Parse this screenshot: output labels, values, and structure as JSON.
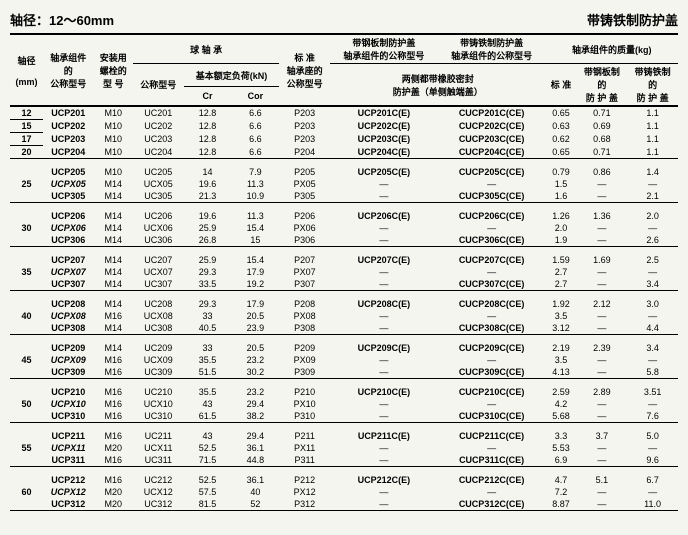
{
  "title_left": "轴径：12～60mm",
  "title_right": "带铸铁制防护盖",
  "headers": {
    "shaft_diam": "轴径",
    "shaft_diam_unit": "(mm)",
    "unit_desig": "轴承组件\n的\n公称型号",
    "mount_bolt": "安装用\n螺栓的\n型 号",
    "ball_bearing": "球 轴 承",
    "bearing_desig": "公称型号",
    "basic_load": "基本额定负荷(kN)",
    "cr": "Cr",
    "cor": "Cor",
    "std_housing": "标  准\n轴承座的\n公称型号",
    "steel_cover": "带钢板制防护盖\n轴承组件的公称型号",
    "cast_cover": "带铸铁制防护盖\n轴承组件的公称型号",
    "rubber_seal": "两侧都带橡胶密封\n防护盖（单侧触端盖）",
    "mass": "轴承组件的质量(kg)",
    "mass_std": "标  准",
    "mass_steel": "带钢板制\n的\n防 护 盖",
    "mass_cast": "带铸铁制\n的\n防 护 盖"
  },
  "rows": [
    {
      "d": "12",
      "u": "UCP201",
      "b": "M10",
      "br": "UC201",
      "cr": "12.8",
      "cor": "6.6",
      "h": "P203",
      "s": "UCP201C(E)",
      "c": "CUCP201C(CE)",
      "m1": "0.65",
      "m2": "0.71",
      "m3": "1.1",
      "sty": "bold"
    },
    {
      "d": "15",
      "u": "UCP202",
      "b": "M10",
      "br": "UC202",
      "cr": "12.8",
      "cor": "6.6",
      "h": "P203",
      "s": "UCP202C(E)",
      "c": "CUCP202C(CE)",
      "m1": "0.63",
      "m2": "0.69",
      "m3": "1.1",
      "sty": "bold"
    },
    {
      "d": "17",
      "u": "UCP203",
      "b": "M10",
      "br": "UC203",
      "cr": "12.8",
      "cor": "6.6",
      "h": "P203",
      "s": "UCP203C(E)",
      "c": "CUCP203C(CE)",
      "m1": "0.62",
      "m2": "0.68",
      "m3": "1.1",
      "sty": "bold"
    },
    {
      "d": "20",
      "u": "UCP204",
      "b": "M10",
      "br": "UC204",
      "cr": "12.8",
      "cor": "6.6",
      "h": "P204",
      "s": "UCP204C(E)",
      "c": "CUCP204C(CE)",
      "m1": "0.65",
      "m2": "0.71",
      "m3": "1.1",
      "sty": "bold",
      "last": true
    },
    {
      "d": "25",
      "u": "UCP205",
      "b": "M10",
      "br": "UC205",
      "cr": "14",
      "cor": "7.9",
      "h": "P205",
      "s": "UCP205C(E)",
      "c": "CUCP205C(CE)",
      "m1": "0.79",
      "m2": "0.86",
      "m3": "1.4",
      "sty": "bold",
      "gap": true,
      "span": 3
    },
    {
      "d": "",
      "u": "UCPX05",
      "b": "M14",
      "br": "UCX05",
      "cr": "19.6",
      "cor": "11.3",
      "h": "PX05",
      "s": "—",
      "c": "—",
      "m1": "1.5",
      "m2": "—",
      "m3": "—",
      "sty": "italic"
    },
    {
      "d": "",
      "u": "UCP305",
      "b": "M14",
      "br": "UC305",
      "cr": "21.3",
      "cor": "10.9",
      "h": "P305",
      "s": "—",
      "c": "CUCP305C(CE)",
      "m1": "1.6",
      "m2": "—",
      "m3": "2.1",
      "sty": "bold",
      "last": true
    },
    {
      "d": "30",
      "u": "UCP206",
      "b": "M14",
      "br": "UC206",
      "cr": "19.6",
      "cor": "11.3",
      "h": "P206",
      "s": "UCP206C(E)",
      "c": "CUCP206C(CE)",
      "m1": "1.26",
      "m2": "1.36",
      "m3": "2.0",
      "sty": "bold",
      "gap": true,
      "span": 3
    },
    {
      "d": "",
      "u": "UCPX06",
      "b": "M14",
      "br": "UCX06",
      "cr": "25.9",
      "cor": "15.4",
      "h": "PX06",
      "s": "—",
      "c": "—",
      "m1": "2.0",
      "m2": "—",
      "m3": "—",
      "sty": "italic"
    },
    {
      "d": "",
      "u": "UCP306",
      "b": "M14",
      "br": "UC306",
      "cr": "26.8",
      "cor": "15",
      "h": "P306",
      "s": "—",
      "c": "CUCP306C(CE)",
      "m1": "1.9",
      "m2": "—",
      "m3": "2.6",
      "sty": "bold",
      "last": true
    },
    {
      "d": "35",
      "u": "UCP207",
      "b": "M14",
      "br": "UC207",
      "cr": "25.9",
      "cor": "15.4",
      "h": "P207",
      "s": "UCP207C(E)",
      "c": "CUCP207C(CE)",
      "m1": "1.59",
      "m2": "1.69",
      "m3": "2.5",
      "sty": "bold",
      "gap": true,
      "span": 3
    },
    {
      "d": "",
      "u": "UCPX07",
      "b": "M14",
      "br": "UCX07",
      "cr": "29.3",
      "cor": "17.9",
      "h": "PX07",
      "s": "—",
      "c": "—",
      "m1": "2.7",
      "m2": "—",
      "m3": "—",
      "sty": "italic"
    },
    {
      "d": "",
      "u": "UCP307",
      "b": "M14",
      "br": "UC307",
      "cr": "33.5",
      "cor": "19.2",
      "h": "P307",
      "s": "—",
      "c": "CUCP307C(CE)",
      "m1": "2.7",
      "m2": "—",
      "m3": "3.4",
      "sty": "bold",
      "last": true
    },
    {
      "d": "40",
      "u": "UCP208",
      "b": "M14",
      "br": "UC208",
      "cr": "29.3",
      "cor": "17.9",
      "h": "P208",
      "s": "UCP208C(E)",
      "c": "CUCP208C(CE)",
      "m1": "1.92",
      "m2": "2.12",
      "m3": "3.0",
      "sty": "bold",
      "gap": true,
      "span": 3
    },
    {
      "d": "",
      "u": "UCPX08",
      "b": "M16",
      "br": "UCX08",
      "cr": "33",
      "cor": "20.5",
      "h": "PX08",
      "s": "—",
      "c": "—",
      "m1": "3.5",
      "m2": "—",
      "m3": "—",
      "sty": "italic"
    },
    {
      "d": "",
      "u": "UCP308",
      "b": "M14",
      "br": "UC308",
      "cr": "40.5",
      "cor": "23.9",
      "h": "P308",
      "s": "—",
      "c": "CUCP308C(CE)",
      "m1": "3.12",
      "m2": "—",
      "m3": "4.4",
      "sty": "bold",
      "last": true
    },
    {
      "d": "45",
      "u": "UCP209",
      "b": "M14",
      "br": "UC209",
      "cr": "33",
      "cor": "20.5",
      "h": "P209",
      "s": "UCP209C(E)",
      "c": "CUCP209C(CE)",
      "m1": "2.19",
      "m2": "2.39",
      "m3": "3.4",
      "sty": "bold",
      "gap": true,
      "span": 3
    },
    {
      "d": "",
      "u": "UCPX09",
      "b": "M16",
      "br": "UCX09",
      "cr": "35.5",
      "cor": "23.2",
      "h": "PX09",
      "s": "—",
      "c": "—",
      "m1": "3.5",
      "m2": "—",
      "m3": "—",
      "sty": "italic"
    },
    {
      "d": "",
      "u": "UCP309",
      "b": "M16",
      "br": "UC309",
      "cr": "51.5",
      "cor": "30.2",
      "h": "P309",
      "s": "—",
      "c": "CUCP309C(CE)",
      "m1": "4.13",
      "m2": "—",
      "m3": "5.8",
      "sty": "bold",
      "last": true
    },
    {
      "d": "50",
      "u": "UCP210",
      "b": "M16",
      "br": "UC210",
      "cr": "35.5",
      "cor": "23.2",
      "h": "P210",
      "s": "UCP210C(E)",
      "c": "CUCP210C(CE)",
      "m1": "2.59",
      "m2": "2.89",
      "m3": "3.51",
      "sty": "bold",
      "gap": true,
      "span": 3
    },
    {
      "d": "",
      "u": "UCPX10",
      "b": "M16",
      "br": "UCX10",
      "cr": "43",
      "cor": "29.4",
      "h": "PX10",
      "s": "—",
      "c": "—",
      "m1": "4.2",
      "m2": "—",
      "m3": "—",
      "sty": "italic"
    },
    {
      "d": "",
      "u": "UCP310",
      "b": "M16",
      "br": "UC310",
      "cr": "61.5",
      "cor": "38.2",
      "h": "P310",
      "s": "—",
      "c": "CUCP310C(CE)",
      "m1": "5.68",
      "m2": "—",
      "m3": "7.6",
      "sty": "bold",
      "last": true
    },
    {
      "d": "55",
      "u": "UCP211",
      "b": "M16",
      "br": "UC211",
      "cr": "43",
      "cor": "29.4",
      "h": "P211",
      "s": "UCP211C(E)",
      "c": "CUCP211C(CE)",
      "m1": "3.3",
      "m2": "3.7",
      "m3": "5.0",
      "sty": "bold",
      "gap": true,
      "span": 3
    },
    {
      "d": "",
      "u": "UCPX11",
      "b": "M20",
      "br": "UCX11",
      "cr": "52.5",
      "cor": "36.1",
      "h": "PX11",
      "s": "—",
      "c": "—",
      "m1": "5.53",
      "m2": "—",
      "m3": "—",
      "sty": "italic"
    },
    {
      "d": "",
      "u": "UCP311",
      "b": "M16",
      "br": "UC311",
      "cr": "71.5",
      "cor": "44.8",
      "h": "P311",
      "s": "—",
      "c": "CUCP311C(CE)",
      "m1": "6.9",
      "m2": "—",
      "m3": "9.6",
      "sty": "bold",
      "last": true
    },
    {
      "d": "60",
      "u": "UCP212",
      "b": "M16",
      "br": "UC212",
      "cr": "52.5",
      "cor": "36.1",
      "h": "P212",
      "s": "UCP212C(E)",
      "c": "CUCP212C(CE)",
      "m1": "4.7",
      "m2": "5.1",
      "m3": "6.7",
      "sty": "bold",
      "gap": true,
      "span": 3
    },
    {
      "d": "",
      "u": "UCPX12",
      "b": "M20",
      "br": "UCX12",
      "cr": "57.5",
      "cor": "40",
      "h": "PX12",
      "s": "—",
      "c": "—",
      "m1": "7.2",
      "m2": "—",
      "m3": "—",
      "sty": "italic"
    },
    {
      "d": "",
      "u": "UCP312",
      "b": "M20",
      "br": "UC312",
      "cr": "81.5",
      "cor": "52",
      "h": "P312",
      "s": "—",
      "c": "CUCP312C(CE)",
      "m1": "8.87",
      "m2": "—",
      "m3": "11.0",
      "sty": "bold",
      "last": true
    }
  ]
}
